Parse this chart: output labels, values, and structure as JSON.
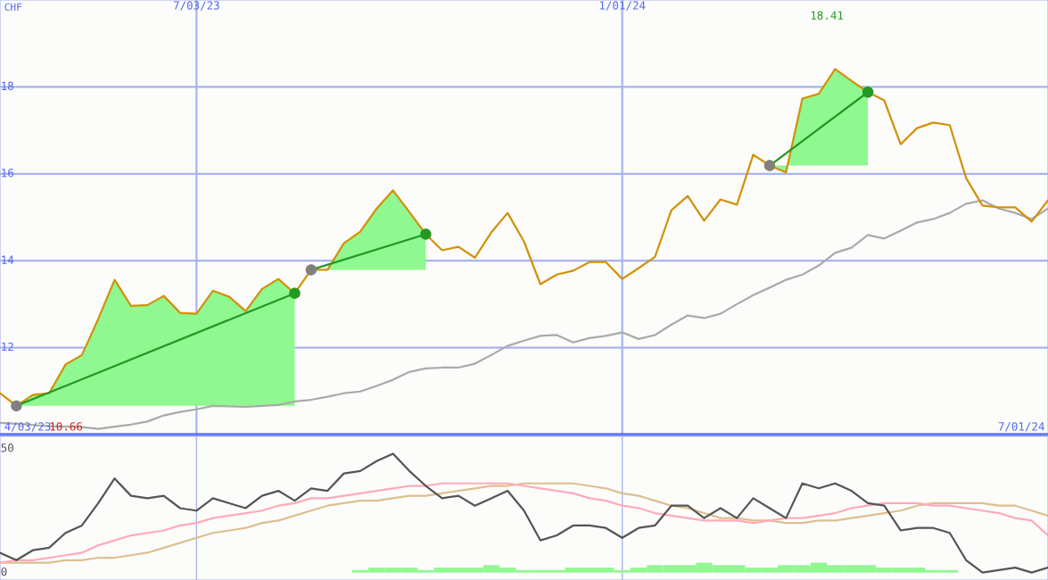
{
  "chart_data": [
    {
      "type": "line",
      "ylabel": "CHF",
      "annotations": [
        "4/03/23",
        "10.66",
        "18.41",
        "7/01/24"
      ],
      "x": [
        "2023-04-10",
        "2023-04-17",
        "2023-04-24",
        "2023-05-01",
        "2023-05-08",
        "2023-05-15",
        "2023-05-22",
        "2023-05-29",
        "2023-06-05",
        "2023-06-12",
        "2023-06-19",
        "2023-06-26",
        "2023-07-03",
        "2023-07-10",
        "2023-07-17",
        "2023-07-24",
        "2023-07-31",
        "2023-08-07",
        "2023-08-14",
        "2023-08-21",
        "2023-08-28",
        "2023-09-04",
        "2023-09-11",
        "2023-09-18",
        "2023-09-25",
        "2023-10-02",
        "2023-10-09",
        "2023-10-16",
        "2023-10-23",
        "2023-10-30",
        "2023-11-06",
        "2023-11-13",
        "2023-11-20",
        "2023-11-27",
        "2023-12-04",
        "2023-12-11",
        "2023-12-18",
        "2023-12-25",
        "2024-01-01",
        "2024-01-08",
        "2024-01-15",
        "2024-01-22",
        "2024-01-29",
        "2024-02-05",
        "2024-02-12",
        "2024-02-19",
        "2024-02-26",
        "2024-03-04",
        "2024-03-11",
        "2024-03-18",
        "2024-03-25",
        "2024-04-01",
        "2024-04-08",
        "2024-04-15",
        "2024-04-22",
        "2024-04-29",
        "2024-05-06",
        "2024-05-13",
        "2024-05-20",
        "2024-05-27",
        "2024-06-03",
        "2024-06-10",
        "2024-06-17",
        "2024-06-24",
        "2024-07-01"
      ],
      "xlim": [
        "2023-04-10",
        "2024-07-01"
      ],
      "xticks": [
        {
          "value": "2023-07-03",
          "label": "7/03/23"
        },
        {
          "value": "2024-01-01",
          "label": "1/01/24"
        }
      ],
      "ylim": [
        10,
        20
      ],
      "yticks": [
        12,
        14,
        16,
        18
      ],
      "grid": true,
      "series": [
        {
          "color": "#aaaaaa",
          "values": [
            10.27,
            10.25,
            10.22,
            10.19,
            10.18,
            10.17,
            10.13,
            10.18,
            10.23,
            10.3,
            10.44,
            10.52,
            10.58,
            10.66,
            10.65,
            10.64,
            10.66,
            10.68,
            10.76,
            10.8,
            10.87,
            10.95,
            10.99,
            11.12,
            11.26,
            11.44,
            11.52,
            11.54,
            11.54,
            11.63,
            11.83,
            12.04,
            12.16,
            12.27,
            12.29,
            12.12,
            12.22,
            12.27,
            12.35,
            12.2,
            12.29,
            12.53,
            12.74,
            12.68,
            12.78,
            13.0,
            13.21,
            13.38,
            13.56,
            13.68,
            13.89,
            14.18,
            14.3,
            14.59,
            14.51,
            14.69,
            14.88,
            14.96,
            15.1,
            15.31,
            15.39,
            15.2,
            15.1,
            14.96,
            15.2
          ]
        },
        {
          "color": "#d4900a",
          "values": [
            10.95,
            10.66,
            10.91,
            10.95,
            11.61,
            11.83,
            12.66,
            13.56,
            12.96,
            12.98,
            13.19,
            12.8,
            12.78,
            13.31,
            13.17,
            12.84,
            13.35,
            13.58,
            13.25,
            13.79,
            13.79,
            14.4,
            14.67,
            15.2,
            15.62,
            15.12,
            14.61,
            14.24,
            14.32,
            14.07,
            14.65,
            15.1,
            14.44,
            13.46,
            13.68,
            13.77,
            13.97,
            13.97,
            13.58,
            13.83,
            14.09,
            15.16,
            15.49,
            14.92,
            15.41,
            15.29,
            16.44,
            16.19,
            16.03,
            17.73,
            17.84,
            18.41,
            18.14,
            17.88,
            17.69,
            16.68,
            17.05,
            17.18,
            17.12,
            15.9,
            15.27,
            15.23,
            15.23,
            14.9,
            15.39
          ],
          "lower": [
            null,
            10.66,
            10.66,
            10.66,
            10.66,
            10.66,
            10.66,
            10.66,
            10.66,
            10.66,
            10.66,
            10.66,
            10.66,
            10.66,
            10.66,
            10.66,
            10.66,
            10.66,
            10.66,
            13.79,
            13.79,
            13.79,
            13.79,
            13.79,
            13.79,
            13.79,
            13.79,
            null,
            null,
            null,
            null,
            null,
            null,
            null,
            null,
            null,
            null,
            null,
            null,
            null,
            null,
            null,
            null,
            null,
            null,
            null,
            null,
            16.19,
            16.19,
            16.19,
            16.19,
            16.19,
            16.19,
            16.19,
            null,
            null,
            null,
            null,
            null,
            null,
            null,
            null,
            null,
            null,
            null
          ],
          "upper": [
            null,
            10.66,
            10.91,
            10.95,
            11.61,
            11.83,
            12.66,
            13.56,
            12.96,
            12.98,
            13.19,
            12.8,
            12.78,
            13.31,
            13.17,
            12.84,
            13.35,
            13.58,
            13.25,
            13.79,
            13.79,
            14.4,
            14.67,
            15.2,
            15.62,
            15.12,
            14.61,
            null,
            null,
            null,
            null,
            null,
            null,
            null,
            null,
            null,
            null,
            null,
            null,
            null,
            null,
            null,
            null,
            null,
            null,
            null,
            null,
            16.19,
            16.03,
            17.73,
            17.84,
            18.41,
            18.14,
            17.88,
            null,
            null,
            null,
            null,
            null,
            null,
            null,
            null,
            null,
            null,
            null
          ]
        },
        {
          "color": "#229922",
          "marker": "circle",
          "colors": [
            "#808080",
            "#229922"
          ],
          "x": [
            "2023-04-17",
            "2023-08-14"
          ],
          "values": [
            10.66,
            13.25
          ]
        },
        {
          "color": "#229922",
          "marker": "circle",
          "colors": [
            "#808080",
            "#229922"
          ],
          "x": [
            "2023-08-21",
            "2023-10-09"
          ],
          "values": [
            13.79,
            14.61
          ]
        },
        {
          "color": "#229922",
          "marker": "circle",
          "colors": [
            "#808080",
            "#229922"
          ],
          "x": [
            "2024-03-04",
            "2024-04-15"
          ],
          "values": [
            16.19,
            17.88
          ]
        }
      ]
    },
    {
      "type": "line",
      "x": [
        "2023-04-10",
        "2023-04-17",
        "2023-04-24",
        "2023-05-01",
        "2023-05-08",
        "2023-05-15",
        "2023-05-22",
        "2023-05-29",
        "2023-06-05",
        "2023-06-12",
        "2023-06-19",
        "2023-06-26",
        "2023-07-03",
        "2023-07-10",
        "2023-07-17",
        "2023-07-24",
        "2023-07-31",
        "2023-08-07",
        "2023-08-14",
        "2023-08-21",
        "2023-08-28",
        "2023-09-04",
        "2023-09-11",
        "2023-09-18",
        "2023-09-25",
        "2023-10-02",
        "2023-10-09",
        "2023-10-16",
        "2023-10-23",
        "2023-10-30",
        "2023-11-06",
        "2023-11-13",
        "2023-11-20",
        "2023-11-27",
        "2023-12-04",
        "2023-12-11",
        "2023-12-18",
        "2023-12-25",
        "2024-01-01",
        "2024-01-08",
        "2024-01-15",
        "2024-01-22",
        "2024-01-29",
        "2024-02-05",
        "2024-02-12",
        "2024-02-19",
        "2024-02-26",
        "2024-03-04",
        "2024-03-11",
        "2024-03-18",
        "2024-03-25",
        "2024-04-01",
        "2024-04-08",
        "2024-04-15",
        "2024-04-22",
        "2024-04-29",
        "2024-05-06",
        "2024-05-13",
        "2024-05-20",
        "2024-05-27",
        "2024-06-03",
        "2024-06-10",
        "2024-06-17",
        "2024-06-24",
        "2024-07-01"
      ],
      "xlim": [
        "2023-04-10",
        "2024-07-01"
      ],
      "xticks": [
        {
          "value": "2023-07-03",
          "label": null
        },
        {
          "value": "2024-01-01",
          "label": null
        }
      ],
      "ylim": [
        -3,
        55
      ],
      "yticks": [
        0,
        50
      ],
      "tick_labels": "y",
      "grid": "x",
      "series": [
        {
          "type": "bar",
          "color": "#90f890",
          "x": [
            "2023-09-11",
            "2023-09-18",
            "2023-09-25",
            "2023-10-02",
            "2023-10-09",
            "2023-10-16",
            "2023-10-23",
            "2023-10-30",
            "2023-11-06",
            "2023-11-13",
            "2023-11-20",
            "2023-11-27",
            "2023-12-04",
            "2023-12-11",
            "2023-12-18",
            "2023-12-25",
            "2024-01-01",
            "2024-01-08",
            "2024-01-15",
            "2024-01-22",
            "2024-01-29",
            "2024-02-05",
            "2024-02-12",
            "2024-02-19",
            "2024-02-26",
            "2024-03-04",
            "2024-03-11",
            "2024-03-18",
            "2024-03-25",
            "2024-04-01",
            "2024-04-08",
            "2024-04-15",
            "2024-04-22",
            "2024-04-29",
            "2024-05-06",
            "2024-05-13",
            "2024-05-20"
          ],
          "values": [
            1,
            2,
            2,
            2,
            1,
            2,
            2,
            2,
            3,
            2,
            1,
            1,
            1,
            2,
            2,
            2,
            1,
            2,
            3,
            3,
            3,
            4,
            3,
            3,
            2,
            2,
            3,
            3,
            4,
            3,
            3,
            3,
            2,
            2,
            2,
            1,
            1
          ]
        },
        {
          "color": "#ddc090",
          "values": [
            4,
            4,
            4,
            4,
            5,
            5,
            6,
            6,
            7,
            8,
            10,
            12,
            14,
            16,
            17,
            18,
            20,
            21,
            23,
            25,
            27,
            28,
            29,
            29,
            30,
            31,
            31,
            32,
            33,
            34,
            35,
            35,
            36,
            36,
            36,
            36,
            35,
            34,
            32,
            31,
            29,
            27,
            26,
            24,
            22,
            22,
            21,
            21,
            20,
            20,
            21,
            21,
            22,
            23,
            24,
            25,
            27,
            28,
            28,
            28,
            28,
            27,
            27,
            25,
            23
          ]
        },
        {
          "color": "#ffaabb",
          "values": [
            4,
            5,
            5,
            6,
            7,
            8,
            11,
            13,
            15,
            16,
            17,
            19,
            20,
            22,
            23,
            24,
            25,
            27,
            28,
            30,
            30,
            31,
            32,
            33,
            34,
            35,
            35,
            36,
            36,
            36,
            36,
            36,
            35,
            34,
            33,
            32,
            30,
            29,
            27,
            26,
            24,
            23,
            22,
            21,
            21,
            21,
            20,
            21,
            22,
            22,
            23,
            24,
            26,
            27,
            28,
            28,
            28,
            27,
            27,
            26,
            25,
            24,
            22,
            21,
            15
          ]
        },
        {
          "color": "#555555",
          "values": [
            8,
            5,
            9,
            10,
            16,
            19,
            28,
            38,
            31,
            30,
            31,
            26,
            25,
            30,
            28,
            26,
            31,
            33,
            29,
            34,
            33,
            40,
            41,
            45,
            48,
            41,
            35,
            30,
            31,
            27,
            30,
            33,
            25,
            13,
            15,
            19,
            19,
            18,
            14,
            18,
            19,
            27,
            27,
            22,
            26,
            22,
            30,
            26,
            22,
            36,
            34,
            36,
            33,
            28,
            27,
            17,
            18,
            18,
            16,
            5,
            0,
            1,
            2,
            0,
            2
          ]
        }
      ]
    }
  ]
}
